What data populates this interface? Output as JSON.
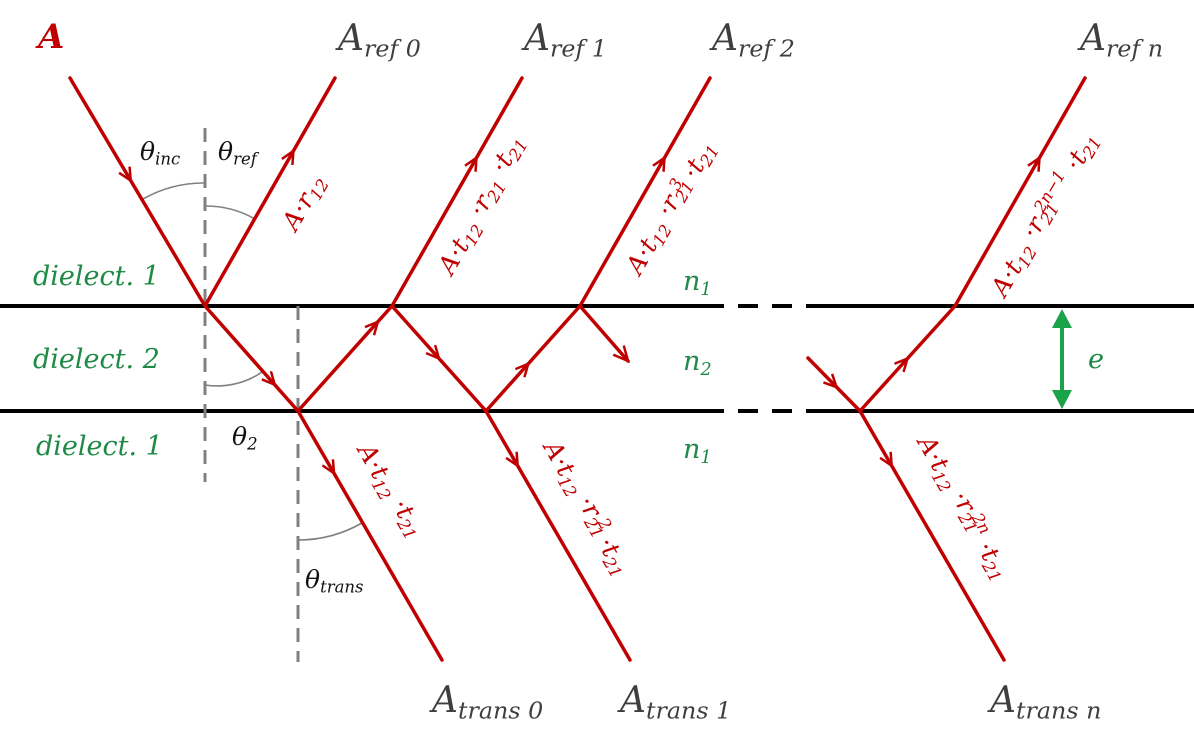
{
  "colors": {
    "ray": "#c00000",
    "medium_label": "#1e8a45",
    "amplitude_label": "#3f3f3f",
    "interface": "#000000",
    "normal": "#808080",
    "thickness_arrow": "#1aa34a"
  },
  "incident_label": [
    [
      "A",
      ""
    ]
  ],
  "amplitudes": {
    "ref0": [
      [
        "A",
        ""
      ],
      [
        "ref 0",
        "sub"
      ]
    ],
    "ref1": [
      [
        "A",
        ""
      ],
      [
        "ref 1",
        "sub"
      ]
    ],
    "ref2": [
      [
        "A",
        ""
      ],
      [
        "ref 2",
        "sub"
      ]
    ],
    "refn": [
      [
        "A",
        ""
      ],
      [
        "ref n",
        "sub"
      ]
    ],
    "trans0": [
      [
        "A",
        ""
      ],
      [
        "trans 0",
        "sub"
      ]
    ],
    "trans1": [
      [
        "A",
        ""
      ],
      [
        "trans 1",
        "sub"
      ]
    ],
    "transn": [
      [
        "A",
        ""
      ],
      [
        "trans n",
        "sub"
      ]
    ]
  },
  "ray_labels": {
    "r12": [
      [
        "A·r",
        ""
      ],
      [
        "12",
        "sub"
      ]
    ],
    "ref1": [
      [
        "A·t",
        ""
      ],
      [
        "12",
        "sub"
      ],
      [
        " ·r",
        ""
      ],
      [
        "21",
        "sub"
      ],
      [
        " ·t",
        ""
      ],
      [
        "21",
        "sub"
      ]
    ],
    "ref2": [
      [
        "A·t",
        ""
      ],
      [
        "12",
        "sub"
      ],
      [
        " ·r",
        ""
      ],
      [
        "21",
        "sub"
      ],
      [
        "3",
        "sup"
      ],
      [
        " ·t",
        ""
      ],
      [
        "21",
        "sub"
      ]
    ],
    "refn": [
      [
        "A·t",
        ""
      ],
      [
        "12",
        "sub"
      ],
      [
        " ·r",
        ""
      ],
      [
        "21",
        "sub"
      ],
      [
        "2n−1",
        "sup"
      ],
      [
        " ·t",
        ""
      ],
      [
        "21",
        "sub"
      ]
    ],
    "trans0": [
      [
        "A·t",
        ""
      ],
      [
        "12",
        "sub"
      ],
      [
        " ·t",
        ""
      ],
      [
        "21",
        "sub"
      ]
    ],
    "trans1": [
      [
        "A·t",
        ""
      ],
      [
        "12",
        "sub"
      ],
      [
        " ·r",
        ""
      ],
      [
        "21",
        "sub"
      ],
      [
        "2",
        "sup"
      ],
      [
        " ·t",
        ""
      ],
      [
        "21",
        "sub"
      ]
    ],
    "transn": [
      [
        "A·t",
        ""
      ],
      [
        "12",
        "sub"
      ],
      [
        " ·r",
        ""
      ],
      [
        "21",
        "sub"
      ],
      [
        "2n",
        "sup"
      ],
      [
        " ·t",
        ""
      ],
      [
        "21",
        "sub"
      ]
    ]
  },
  "angles": {
    "inc": [
      [
        "θ",
        ""
      ],
      [
        "inc",
        "sub"
      ]
    ],
    "ref": [
      [
        "θ",
        ""
      ],
      [
        "ref",
        "sub"
      ]
    ],
    "two": [
      [
        "θ",
        ""
      ],
      [
        "2",
        "sub"
      ]
    ],
    "trans": [
      [
        "θ",
        ""
      ],
      [
        "trans",
        "sub"
      ]
    ]
  },
  "media": {
    "top": [
      [
        "dielect. 1",
        ""
      ]
    ],
    "middle": [
      [
        "dielect. 2",
        ""
      ]
    ],
    "bottom": [
      [
        "dielect. 1",
        ""
      ]
    ]
  },
  "indices": {
    "n1_top": [
      [
        "n",
        ""
      ],
      [
        "1",
        "sub"
      ]
    ],
    "n2": [
      [
        "n",
        ""
      ],
      [
        "2",
        "sub"
      ]
    ],
    "n1_bottom": [
      [
        "n",
        ""
      ],
      [
        "1",
        "sub"
      ]
    ]
  },
  "thickness_label": [
    [
      "e",
      ""
    ]
  ]
}
